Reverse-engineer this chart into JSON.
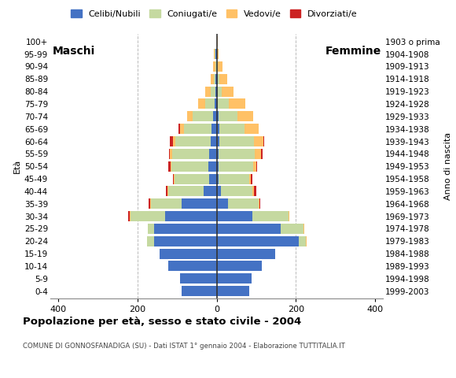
{
  "title": "Popolazione per età, sesso e stato civile - 2004",
  "subtitle": "COMUNE DI GONNOSFANADIGA (SU) - Dati ISTAT 1° gennaio 2004 - Elaborazione TUTTITALIA.IT",
  "ylabel_left": "Età",
  "ylabel_right": "Anno di nascita",
  "age_groups": [
    "0-4",
    "5-9",
    "10-14",
    "15-19",
    "20-24",
    "25-29",
    "30-34",
    "35-39",
    "40-44",
    "45-49",
    "50-54",
    "55-59",
    "60-64",
    "65-69",
    "70-74",
    "75-79",
    "80-84",
    "85-89",
    "90-94",
    "95-99",
    "100+"
  ],
  "birth_years": [
    "1999-2003",
    "1994-1998",
    "1989-1993",
    "1984-1988",
    "1979-1983",
    "1974-1978",
    "1969-1973",
    "1964-1968",
    "1959-1963",
    "1954-1958",
    "1949-1953",
    "1944-1948",
    "1939-1943",
    "1934-1938",
    "1929-1933",
    "1924-1928",
    "1919-1923",
    "1914-1918",
    "1909-1913",
    "1904-1908",
    "1903 o prima"
  ],
  "male_celibe": [
    88,
    92,
    122,
    143,
    158,
    158,
    130,
    88,
    32,
    18,
    20,
    18,
    15,
    12,
    8,
    4,
    2,
    2,
    0,
    2,
    0
  ],
  "male_coniugato": [
    0,
    0,
    0,
    0,
    18,
    16,
    88,
    78,
    90,
    88,
    95,
    95,
    90,
    70,
    52,
    25,
    12,
    5,
    3,
    2,
    0
  ],
  "male_vedovo": [
    0,
    0,
    0,
    0,
    0,
    0,
    2,
    2,
    2,
    2,
    2,
    5,
    5,
    10,
    15,
    18,
    15,
    8,
    5,
    2,
    0
  ],
  "male_divorziato": [
    0,
    0,
    0,
    0,
    0,
    0,
    3,
    3,
    3,
    3,
    5,
    3,
    8,
    4,
    0,
    0,
    0,
    0,
    0,
    0,
    0
  ],
  "female_celibe": [
    82,
    88,
    115,
    147,
    208,
    162,
    90,
    28,
    10,
    5,
    5,
    5,
    6,
    6,
    5,
    2,
    2,
    2,
    0,
    0,
    0
  ],
  "female_coniugato": [
    0,
    0,
    0,
    0,
    18,
    58,
    92,
    78,
    80,
    78,
    88,
    92,
    88,
    65,
    48,
    28,
    10,
    5,
    2,
    0,
    0
  ],
  "female_vedovo": [
    0,
    0,
    0,
    0,
    2,
    2,
    2,
    2,
    4,
    4,
    8,
    16,
    24,
    36,
    40,
    42,
    30,
    20,
    12,
    5,
    2
  ],
  "female_divorziato": [
    0,
    0,
    0,
    0,
    0,
    0,
    0,
    3,
    6,
    3,
    2,
    4,
    3,
    0,
    0,
    0,
    0,
    0,
    0,
    0,
    0
  ],
  "color_celibe": "#4472c4",
  "color_coniugato": "#c5d9a0",
  "color_vedovo": "#ffc166",
  "color_divorziato": "#cc2222",
  "bg_color": "#ffffff",
  "grid_color": "#bbbbbb",
  "xlim": 420,
  "legend_labels": [
    "Celibi/Nubili",
    "Coniugati/e",
    "Vedovi/e",
    "Divorziati/e"
  ]
}
